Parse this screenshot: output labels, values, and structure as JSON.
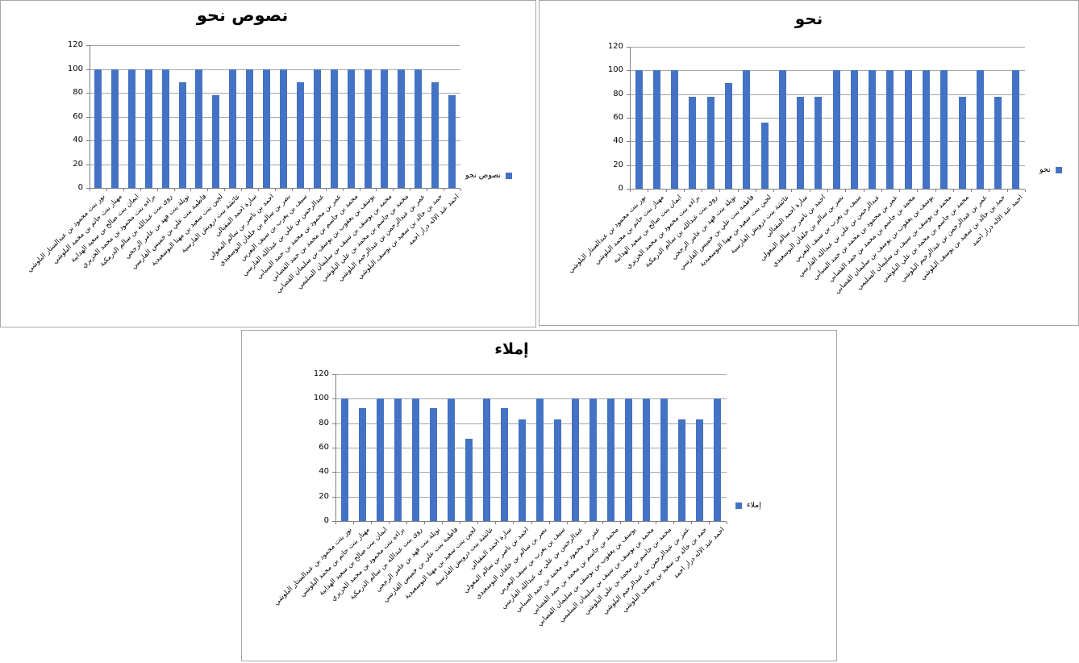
{
  "page": {
    "background": "#ffffff"
  },
  "chart_data": [
    {
      "type": "bar",
      "title": "نصوص نحو",
      "legend": "نصوص نحو",
      "bar_color": "#4472C4",
      "ylim": [
        0,
        120
      ],
      "yticks": [
        0,
        20,
        40,
        60,
        80,
        100,
        120
      ],
      "grid": true,
      "legend_position": "right",
      "legend_marker_side": "right",
      "categories": [
        "نور بنت محمود بن عبدالستار البلوشي",
        "مهناز بنت حاتم بن محمد البلوشي",
        "ايمان بنت صالح بن سعيد الهدابية",
        "براءه بنت محمود بن محمد الخزيري",
        "روى بنت عبدالله بن سالم الدرمكية",
        "نويلة بنت فهد بن عامر الرجحي",
        "فاطمة بنت علي بن خميس الفارسي",
        "لجين بنت سعيد بن مهنا البوسعيدية",
        "عائشة بنت درويش الفارسية",
        "سارة احمد المقبالي",
        "احمد بن ناصر بن سالم المعولي",
        "نصر بن سالم بن خلفان البوسعيدي",
        "سيف بن يعرب بن سيف اليعربي",
        "عبدالرحمن بن علي بن عبدالله الفارسي",
        "عمر بن محمود بن محمد بن حمد السيابي",
        "محمد بن جاسم بن محمد بن حمد القصابي",
        "يوسف بن يعقوب بن يوسف بن سليمان القصابي",
        "محمد بن يوسف بن سيف بن سليمان السليمي",
        "محمد بن جاسم بن محمد بن علي البلوشي",
        "عمر بن عبدالرحمن بن عبدالرحيم البلوشي",
        "حمد بن خالد بن سعيد بن يوسف البلوشي",
        "احمد عبد الاله درار احمد"
      ],
      "values": [
        100,
        100,
        100,
        100,
        100,
        89,
        100,
        78,
        100,
        100,
        100,
        100,
        89,
        100,
        100,
        100,
        100,
        100,
        100,
        100,
        89,
        78
      ]
    },
    {
      "type": "bar",
      "title": "نحو",
      "legend": "نحو",
      "bar_color": "#4472C4",
      "ylim": [
        0,
        120
      ],
      "yticks": [
        0,
        20,
        40,
        60,
        80,
        100,
        120
      ],
      "grid": true,
      "legend_position": "right",
      "legend_marker_side": "right",
      "categories": [
        "نور بنت محمود بن عبدالستار البلوشي",
        "مهناز بنت حاتم بن محمد البلوشي",
        "ايمان بنت صالح بن سعيد الهدابية",
        "براءه بنت محمود بن محمد الخزيري",
        "روى بنت عبدالله بن سالم الدرمكية",
        "نويلة بنت فهد بن عامر الرجحي",
        "فاطمة بنت علي بن خميس الفارسي",
        "لجين بنت سعيد بن مهنا البوسعيدية",
        "عائشة بنت درويش الفارسية",
        "سارة احمد المقبالي",
        "احمد بن ناصر بن سالم المعولي",
        "نصر بن سالم بن خلفان البوسعيدي",
        "سيف بن يعرب بن سيف اليعربي",
        "عبدالرحمن بن علي بن عبدالله الفارسي",
        "عمر بن محمود بن محمد بن حمد السيابي",
        "محمد بن جاسم بن محمد بن حمد القصابي",
        "يوسف بن يعقوب بن يوسف بن سليمان القصابي",
        "محمد بن يوسف بن سيف بن سليمان السليمي",
        "محمد بن جاسم بن محمد بن علي البلوشي",
        "عمر بن عبدالرحمن بن عبدالرحيم البلوشي",
        "حمد بن خالد بن سعيد بن يوسف البلوشي",
        "احمد عبد الاله درار احمد"
      ],
      "values": [
        100,
        100,
        100,
        78,
        78,
        89,
        100,
        56,
        100,
        78,
        78,
        100,
        100,
        100,
        100,
        100,
        100,
        100,
        78,
        100,
        78,
        100
      ]
    },
    {
      "type": "bar",
      "title": "إملاء",
      "legend": "إملاء",
      "bar_color": "#4472C4",
      "ylim": [
        0,
        120
      ],
      "yticks": [
        0,
        20,
        40,
        60,
        80,
        100,
        120
      ],
      "grid": true,
      "legend_position": "right",
      "legend_marker_side": "left",
      "categories": [
        "نور بنت محمود بن عبدالستار البلوشي",
        "مهناز بنت حاتم بن محمد البلوشي",
        "ايمان بنت صالح بن سعيد الهدابية",
        "براءه بنت محمود بن محمد الخزيري",
        "روى بنت عبدالله بن سالم الدرمكية",
        "نويلة بنت فهد بن عامر الرجحي",
        "فاطمة بنت علي بن خميس الفارسي",
        "لجين بنت سعيد بن مهنا البوسعيدية",
        "عائشة بنت درويش الفارسية",
        "سارة احمد المقبالي",
        "احمد بن ناصر بن سالم المعولي",
        "نصر بن سالم بن خلفان البوسعيدي",
        "سيف بن يعرب بن سيف اليعربي",
        "عبدالرحمن بن علي بن عبدالله الفارسي",
        "عمر بن محمود بن محمد بن حمد السيابي",
        "محمد بن جاسم بن محمد بن حمد القصابي",
        "يوسف بن يعقوب بن يوسف بن سليمان القصابي",
        "محمد بن يوسف بن سيف بن سليمان السليمي",
        "محمد بن جاسم بن محمد بن علي البلوشي",
        "عمر بن عبدالرحمن بن عبدالرحيم البلوشي",
        "حمد بن خالد بن سعيد بن يوسف البلوشي",
        "احمد عبد الاله درار احمد"
      ],
      "values": [
        100,
        92,
        100,
        100,
        100,
        92,
        100,
        67,
        100,
        92,
        83,
        100,
        83,
        100,
        100,
        100,
        100,
        100,
        100,
        83,
        83,
        100
      ]
    }
  ]
}
